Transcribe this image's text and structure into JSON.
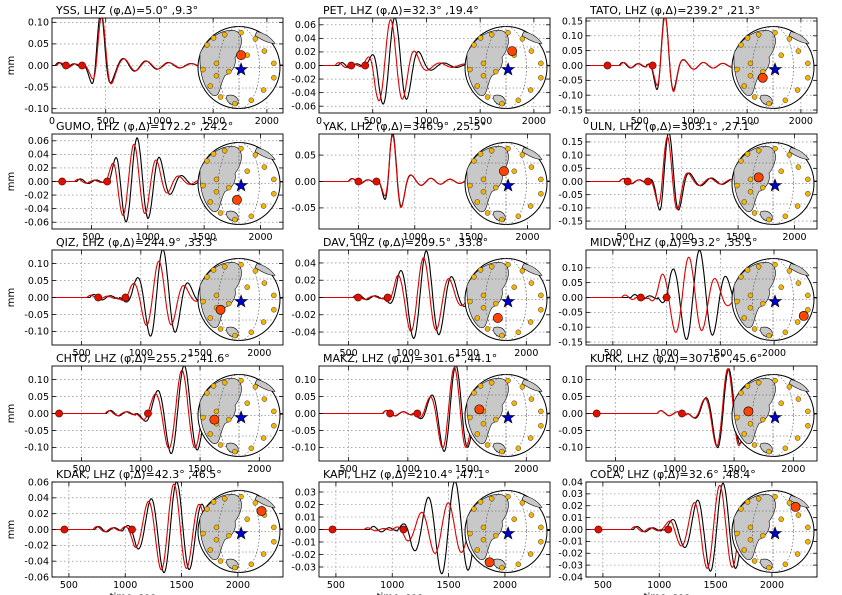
{
  "figure": {
    "ylabel": "mm",
    "xlabel": "time, sec",
    "series_colors": {
      "observed": "#000000",
      "synthetic": "#dd0000"
    },
    "map_colors": {
      "land": "#c8c8c8",
      "station": "#f5b400",
      "active_station": "#ff4500",
      "event": "#0000cc"
    }
  },
  "chart_data": [
    {
      "type": "line",
      "title": "YSS, LHZ (φ,Δ)=5.0° ,9.3°",
      "ylabel": "mm",
      "xlim": [
        0,
        2150
      ],
      "ylim": [
        -0.11,
        0.11
      ],
      "xticks": [
        0,
        500,
        1000,
        1500,
        2000
      ],
      "yticks": [
        -0.1,
        -0.05,
        0.0,
        0.05,
        0.1
      ],
      "picks": [
        130,
        280
      ],
      "wave": {
        "arrival": 280,
        "peak_t": 450,
        "width": 50,
        "amp": 0.1,
        "period": 210,
        "tail": 0.35,
        "syn_shift": 15,
        "syn_scale": 0.92
      },
      "map": {
        "station": [
          0.05,
          -0.3
        ]
      }
    },
    {
      "type": "line",
      "title": "PET, LHZ (φ,Δ)=32.3° ,19.4°",
      "ylabel": "",
      "xlim": [
        0,
        2150
      ],
      "ylim": [
        -0.07,
        0.07
      ],
      "xticks": [
        0,
        500,
        1000,
        1500,
        2000
      ],
      "yticks": [
        -0.06,
        -0.04,
        -0.02,
        0.0,
        0.02,
        0.04,
        0.06
      ],
      "picks": [
        300,
        430
      ],
      "wave": {
        "arrival": 430,
        "peak_t": 700,
        "width": 120,
        "amp": 0.062,
        "period": 230,
        "tail": 0.25,
        "syn_shift": -30,
        "syn_scale": 0.95
      },
      "map": {
        "station": [
          0.15,
          -0.4
        ]
      }
    },
    {
      "type": "line",
      "title": "TATO, LHZ (φ,Δ)=239.2° ,21.3°",
      "ylabel": "",
      "xlim": [
        0,
        2150
      ],
      "ylim": [
        -0.16,
        0.16
      ],
      "xticks": [
        0,
        500,
        1000,
        1500,
        2000
      ],
      "yticks": [
        -0.15,
        -0.1,
        -0.05,
        0.0,
        0.05,
        0.1,
        0.15
      ],
      "picks": [
        200,
        620
      ],
      "wave": {
        "arrival": 560,
        "peak_t": 730,
        "width": 60,
        "amp": 0.15,
        "period": 180,
        "tail": 0.2,
        "syn_shift": 8,
        "syn_scale": 0.97
      },
      "map": {
        "station": [
          -0.25,
          0.25
        ]
      }
    },
    {
      "type": "line",
      "title": "GUMO, LHZ (φ,Δ)=172.2° ,24.2°",
      "ylabel": "mm",
      "xlim": [
        150,
        2200
      ],
      "ylim": [
        -0.07,
        0.07
      ],
      "xticks": [
        500,
        1000,
        1500,
        2000
      ],
      "yticks": [
        -0.06,
        -0.04,
        -0.02,
        0.0,
        0.02,
        0.04,
        0.06
      ],
      "picks": [
        240,
        640
      ],
      "wave": {
        "arrival": 620,
        "peak_t": 900,
        "width": 160,
        "amp": 0.055,
        "period": 200,
        "tail": 0.3,
        "syn_shift": -20,
        "syn_scale": 0.85
      },
      "map": {
        "station": [
          -0.05,
          0.4
        ]
      }
    },
    {
      "type": "line",
      "title": "YAK, LHZ (φ,Δ)=346.9° ,25.5°",
      "ylabel": "",
      "xlim": [
        150,
        2200
      ],
      "ylim": [
        -0.09,
        0.09
      ],
      "xticks": [
        500,
        1000,
        1500,
        2000
      ],
      "yticks": [
        -0.05,
        0.0,
        0.05
      ],
      "picks": [
        500,
        660
      ],
      "wave": {
        "arrival": 660,
        "peak_t": 800,
        "width": 60,
        "amp": 0.08,
        "period": 170,
        "tail": 0.2,
        "syn_shift": 5,
        "syn_scale": 0.95
      },
      "map": {
        "station": [
          -0.05,
          -0.3
        ]
      }
    },
    {
      "type": "line",
      "title": "ULN, LHZ (φ,Δ)=303.1° ,27.1°",
      "ylabel": "",
      "xlim": [
        150,
        2200
      ],
      "ylim": [
        -0.18,
        0.18
      ],
      "xticks": [
        500,
        1000,
        1500,
        2000
      ],
      "yticks": [
        -0.15,
        -0.1,
        -0.05,
        0.0,
        0.05,
        0.1,
        0.15
      ],
      "picks": [
        520,
        700
      ],
      "wave": {
        "arrival": 700,
        "peak_t": 880,
        "width": 75,
        "amp": 0.16,
        "period": 190,
        "tail": 0.25,
        "syn_shift": -5,
        "syn_scale": 0.9
      },
      "map": {
        "station": [
          -0.35,
          -0.15
        ]
      }
    },
    {
      "type": "line",
      "title": "QIZ, LHZ (φ,Δ)=244.9° ,33.3°",
      "ylabel": "mm",
      "xlim": [
        250,
        2200
      ],
      "ylim": [
        -0.14,
        0.14
      ],
      "xticks": [
        500,
        1000,
        1500,
        2000
      ],
      "yticks": [
        -0.1,
        -0.05,
        0.0,
        0.05,
        0.1
      ],
      "picks": [
        640,
        870
      ],
      "wave": {
        "arrival": 820,
        "peak_t": 1180,
        "width": 120,
        "amp": 0.13,
        "period": 220,
        "tail": 0.2,
        "syn_shift": -25,
        "syn_scale": 0.75
      },
      "map": {
        "station": [
          -0.45,
          0.25
        ]
      }
    },
    {
      "type": "line",
      "title": "DAV, LHZ (φ,Δ)=209.5° ,33.8°",
      "ylabel": "",
      "xlim": [
        250,
        2200
      ],
      "ylim": [
        -0.055,
        0.055
      ],
      "xticks": [
        500,
        1000,
        1500,
        2000
      ],
      "yticks": [
        -0.04,
        -0.02,
        0.0,
        0.02,
        0.04
      ],
      "picks": [
        580,
        830
      ],
      "wave": {
        "arrival": 800,
        "peak_t": 1150,
        "width": 150,
        "amp": 0.048,
        "period": 220,
        "tail": 0.25,
        "syn_shift": -15,
        "syn_scale": 0.85
      },
      "map": {
        "station": [
          -0.2,
          0.45
        ]
      }
    },
    {
      "type": "line",
      "title": "MIDW, LHZ (φ,Δ)=93.2° ,35.5°",
      "ylabel": "",
      "xlim": [
        250,
        2400
      ],
      "ylim": [
        -0.16,
        0.16
      ],
      "xticks": [
        500,
        1000,
        1500,
        2000
      ],
      "yticks": [
        -0.15,
        -0.1,
        -0.05,
        0.0,
        0.05,
        0.1
      ],
      "picks": [
        760,
        1000
      ],
      "wave": {
        "arrival": 920,
        "peak_t": 1300,
        "width": 170,
        "amp": 0.14,
        "period": 250,
        "tail": 0.3,
        "syn_shift": -90,
        "syn_scale": 0.85
      },
      "map": {
        "station": [
          0.75,
          0.4
        ]
      }
    },
    {
      "type": "line",
      "title": "CHTO, LHZ (φ,Δ)=255.2° ,41.6°",
      "ylabel": "mm",
      "xlim": [
        250,
        2200
      ],
      "ylim": [
        -0.14,
        0.14
      ],
      "xticks": [
        500,
        1000,
        1500,
        2000
      ],
      "yticks": [
        -0.1,
        -0.05,
        0.0,
        0.05,
        0.1
      ],
      "picks": [
        310,
        1060
      ],
      "wave": {
        "arrival": 960,
        "peak_t": 1360,
        "width": 140,
        "amp": 0.13,
        "period": 230,
        "tail": 0.2,
        "syn_shift": -10,
        "syn_scale": 0.9
      },
      "map": {
        "station": [
          -0.6,
          0.1
        ]
      }
    },
    {
      "type": "line",
      "title": "MAKZ, LHZ (φ,Δ)=301.6° ,44.1°",
      "ylabel": "",
      "xlim": [
        250,
        2200
      ],
      "ylim": [
        -0.14,
        0.14
      ],
      "xticks": [
        500,
        1000,
        1500,
        2000
      ],
      "yticks": [
        -0.1,
        -0.05,
        0.0,
        0.05,
        0.1
      ],
      "picks": [
        850,
        1080
      ],
      "wave": {
        "arrival": 1040,
        "peak_t": 1400,
        "width": 110,
        "amp": 0.13,
        "period": 210,
        "tail": 0.2,
        "syn_shift": -5,
        "syn_scale": 0.95
      },
      "map": {
        "station": [
          -0.65,
          -0.15
        ]
      }
    },
    {
      "type": "line",
      "title": "KURK, LHZ (φ,Δ)=307.6° ,45.6°",
      "ylabel": "",
      "xlim": [
        250,
        2200
      ],
      "ylim": [
        -0.14,
        0.14
      ],
      "xticks": [
        500,
        1000,
        1500,
        2000
      ],
      "yticks": [
        -0.1,
        -0.05,
        0.0,
        0.05,
        0.1
      ],
      "picks": [
        340,
        1060
      ],
      "wave": {
        "arrival": 1100,
        "peak_t": 1450,
        "width": 100,
        "amp": 0.12,
        "period": 200,
        "tail": 0.2,
        "syn_shift": 0,
        "syn_scale": 1.0
      },
      "map": {
        "station": [
          -0.6,
          -0.1
        ]
      }
    },
    {
      "type": "line",
      "title": "KDAK, LHZ (φ,Δ)=42.3° ,46.5°",
      "ylabel": "mm",
      "xlim": [
        350,
        2400
      ],
      "ylim": [
        -0.06,
        0.06
      ],
      "xticks": [
        500,
        1000,
        1500,
        2000
      ],
      "yticks": [
        -0.06,
        -0.04,
        -0.02,
        0.0,
        0.02,
        0.04,
        0.06
      ],
      "picks": [
        460,
        1060
      ],
      "wave": {
        "arrival": 980,
        "peak_t": 1450,
        "width": 180,
        "amp": 0.055,
        "period": 230,
        "tail": 0.25,
        "syn_shift": -15,
        "syn_scale": 0.95
      },
      "map": {
        "station": [
          0.55,
          -0.5
        ]
      }
    },
    {
      "type": "line",
      "title": "KAPI, LHZ (φ,Δ)=210.4° ,47.1°",
      "ylabel": "",
      "xlim": [
        350,
        2400
      ],
      "ylim": [
        -0.038,
        0.038
      ],
      "xticks": [
        500,
        1000,
        1500,
        2000
      ],
      "yticks": [
        -0.03,
        -0.02,
        -0.01,
        0.0,
        0.01,
        0.02,
        0.03
      ],
      "picks": [
        470,
        1100
      ],
      "wave": {
        "arrival": 1050,
        "peak_t": 1550,
        "width": 190,
        "amp": 0.035,
        "period": 240,
        "tail": 0.3,
        "syn_shift": -50,
        "syn_scale": 0.55
      },
      "map": {
        "station": [
          -0.4,
          0.75
        ]
      }
    },
    {
      "type": "line",
      "title": "COLA, LHZ (φ,Δ)=32.6° ,48.4°",
      "ylabel": "",
      "xlim": [
        350,
        2400
      ],
      "ylim": [
        -0.04,
        0.04
      ],
      "xticks": [
        500,
        1000,
        1500,
        2000
      ],
      "yticks": [
        -0.04,
        -0.03,
        -0.02,
        -0.01,
        0.0,
        0.01,
        0.02,
        0.03,
        0.04
      ],
      "picks": [
        460,
        1080
      ],
      "wave": {
        "arrival": 1020,
        "peak_t": 1560,
        "width": 180,
        "amp": 0.036,
        "period": 230,
        "tail": 0.25,
        "syn_shift": -20,
        "syn_scale": 0.95
      },
      "map": {
        "station": [
          0.55,
          -0.6
        ]
      }
    }
  ]
}
